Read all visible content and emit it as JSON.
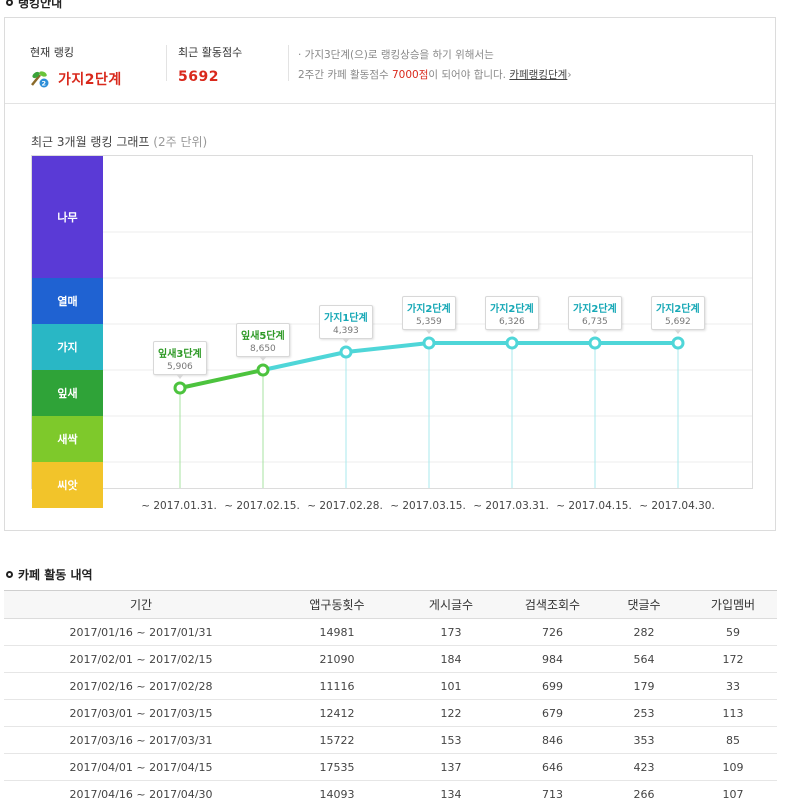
{
  "ranking_section": {
    "title": "랭킹안내",
    "current_rank_label": "현재 랭킹",
    "current_rank_value": "가지2단계",
    "score_label": "최근 활동점수",
    "score_value": "5692",
    "notice_line1": "· 가지3단계(으)로 랭킹상승을 하기 위해서는",
    "notice_line2_pre": "2주간 카페 활동점수 ",
    "notice_line2_hl": "7000점",
    "notice_line2_post": "이 되어야 합니다.",
    "notice_link": "카페랭킹단계",
    "notice_arrow": "›",
    "graph_title": "최근 3개월 랭킹 그래프",
    "graph_subtitle": "(2주 단위)"
  },
  "chart_data": {
    "type": "line",
    "stages": [
      {
        "name": "나무",
        "color": "#5a3ad6"
      },
      {
        "name": "열매",
        "color": "#1f62d2"
      },
      {
        "name": "가지",
        "color": "#29b7c5"
      },
      {
        "name": "잎새",
        "color": "#2fa338"
      },
      {
        "name": "새싹",
        "color": "#7ec92b"
      },
      {
        "name": "씨앗",
        "color": "#f2c42a"
      }
    ],
    "x": [
      "~ 2017.01.31.",
      "~ 2017.02.15.",
      "~ 2017.02.28.",
      "~ 2017.03.15.",
      "~ 2017.03.31.",
      "~ 2017.04.15.",
      "~ 2017.04.30."
    ],
    "points": [
      {
        "label": "잎새3단계",
        "value": "5,906",
        "stage": "잎새",
        "level": 3
      },
      {
        "label": "잎새5단계",
        "value": "8,650",
        "stage": "잎새",
        "level": 5
      },
      {
        "label": "가지1단계",
        "value": "4,393",
        "stage": "가지",
        "level": 1
      },
      {
        "label": "가지2단계",
        "value": "5,359",
        "stage": "가지",
        "level": 2
      },
      {
        "label": "가지2단계",
        "value": "6,326",
        "stage": "가지",
        "level": 2
      },
      {
        "label": "가지2단계",
        "value": "6,735",
        "stage": "가지",
        "level": 2
      },
      {
        "label": "가지2단계",
        "value": "5,692",
        "stage": "가지",
        "level": 2
      }
    ],
    "colors": {
      "green": "#4cc33e",
      "cyan": "#4fd6d8"
    }
  },
  "activity_section": {
    "title": "카페 활동 내역",
    "columns": [
      "기간",
      "앱구동횟수",
      "게시글수",
      "검색조회수",
      "댓글수",
      "가입멤버"
    ],
    "rows": [
      [
        "2017/01/16 ~ 2017/01/31",
        "14981",
        "173",
        "726",
        "282",
        "59"
      ],
      [
        "2017/02/01 ~ 2017/02/15",
        "21090",
        "184",
        "984",
        "564",
        "172"
      ],
      [
        "2017/02/16 ~ 2017/02/28",
        "11116",
        "101",
        "699",
        "179",
        "33"
      ],
      [
        "2017/03/01 ~ 2017/03/15",
        "12412",
        "122",
        "679",
        "253",
        "113"
      ],
      [
        "2017/03/16 ~ 2017/03/31",
        "15722",
        "153",
        "846",
        "353",
        "85"
      ],
      [
        "2017/04/01 ~ 2017/04/15",
        "17535",
        "137",
        "646",
        "423",
        "109"
      ],
      [
        "2017/04/16 ~ 2017/04/30",
        "14093",
        "134",
        "713",
        "266",
        "107"
      ]
    ]
  }
}
